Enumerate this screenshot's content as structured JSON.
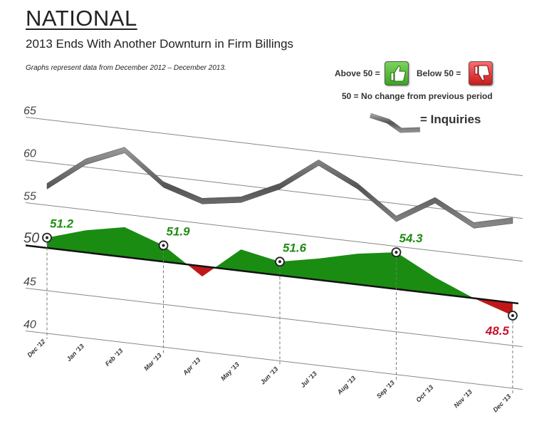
{
  "header": {
    "title": "NATIONAL",
    "subtitle": "2013 Ends With Another Downturn in Firm Billings",
    "note": "Graphs represent data from December 2012 – December 2013."
  },
  "legend": {
    "above_label": "Above 50 =",
    "below_label": "Below 50 =",
    "above_icon": "thumbs-up-icon",
    "below_icon": "thumbs-down-icon",
    "key_note": "50 = No change from previous period",
    "inquiries_label": "= Inquiries"
  },
  "colors": {
    "above": "#1a8c12",
    "below": "#c01818",
    "inquiries": "#666666",
    "label_green": "#1f8c12",
    "label_red": "#c8102e"
  },
  "chart_data": {
    "type": "area",
    "categories": [
      "Dec '12",
      "Jan '13",
      "Feb '13",
      "Mar '13",
      "Apr '13",
      "May '13",
      "Jun '13",
      "Jul '13",
      "Aug '13",
      "Sep '13",
      "Oct '13",
      "Nov '13",
      "Dec '13"
    ],
    "y_ticks": [
      "65",
      "60",
      "55",
      "50",
      "45",
      "40"
    ],
    "ylim": [
      40,
      65
    ],
    "baseline": 50,
    "series": [
      {
        "name": "",
        "values": [
          51.2,
          52.6,
          53.5,
          51.9,
          48.8,
          52.5,
          51.6,
          52.5,
          53.6,
          54.3,
          51.9,
          50.0,
          48.5
        ]
      },
      {
        "name": "Inquiries",
        "values": [
          57.3,
          60.7,
          62.6,
          59.1,
          57.7,
          58.4,
          60.5,
          63.8,
          61.6,
          58.3,
          61.0,
          58.6,
          59.7
        ]
      }
    ],
    "data_labels": [
      {
        "index": 0,
        "text": "51.2"
      },
      {
        "index": 3,
        "text": "51.9"
      },
      {
        "index": 6,
        "text": "51.6"
      },
      {
        "index": 9,
        "text": "54.3"
      },
      {
        "index": 12,
        "text": "48.5"
      }
    ]
  }
}
